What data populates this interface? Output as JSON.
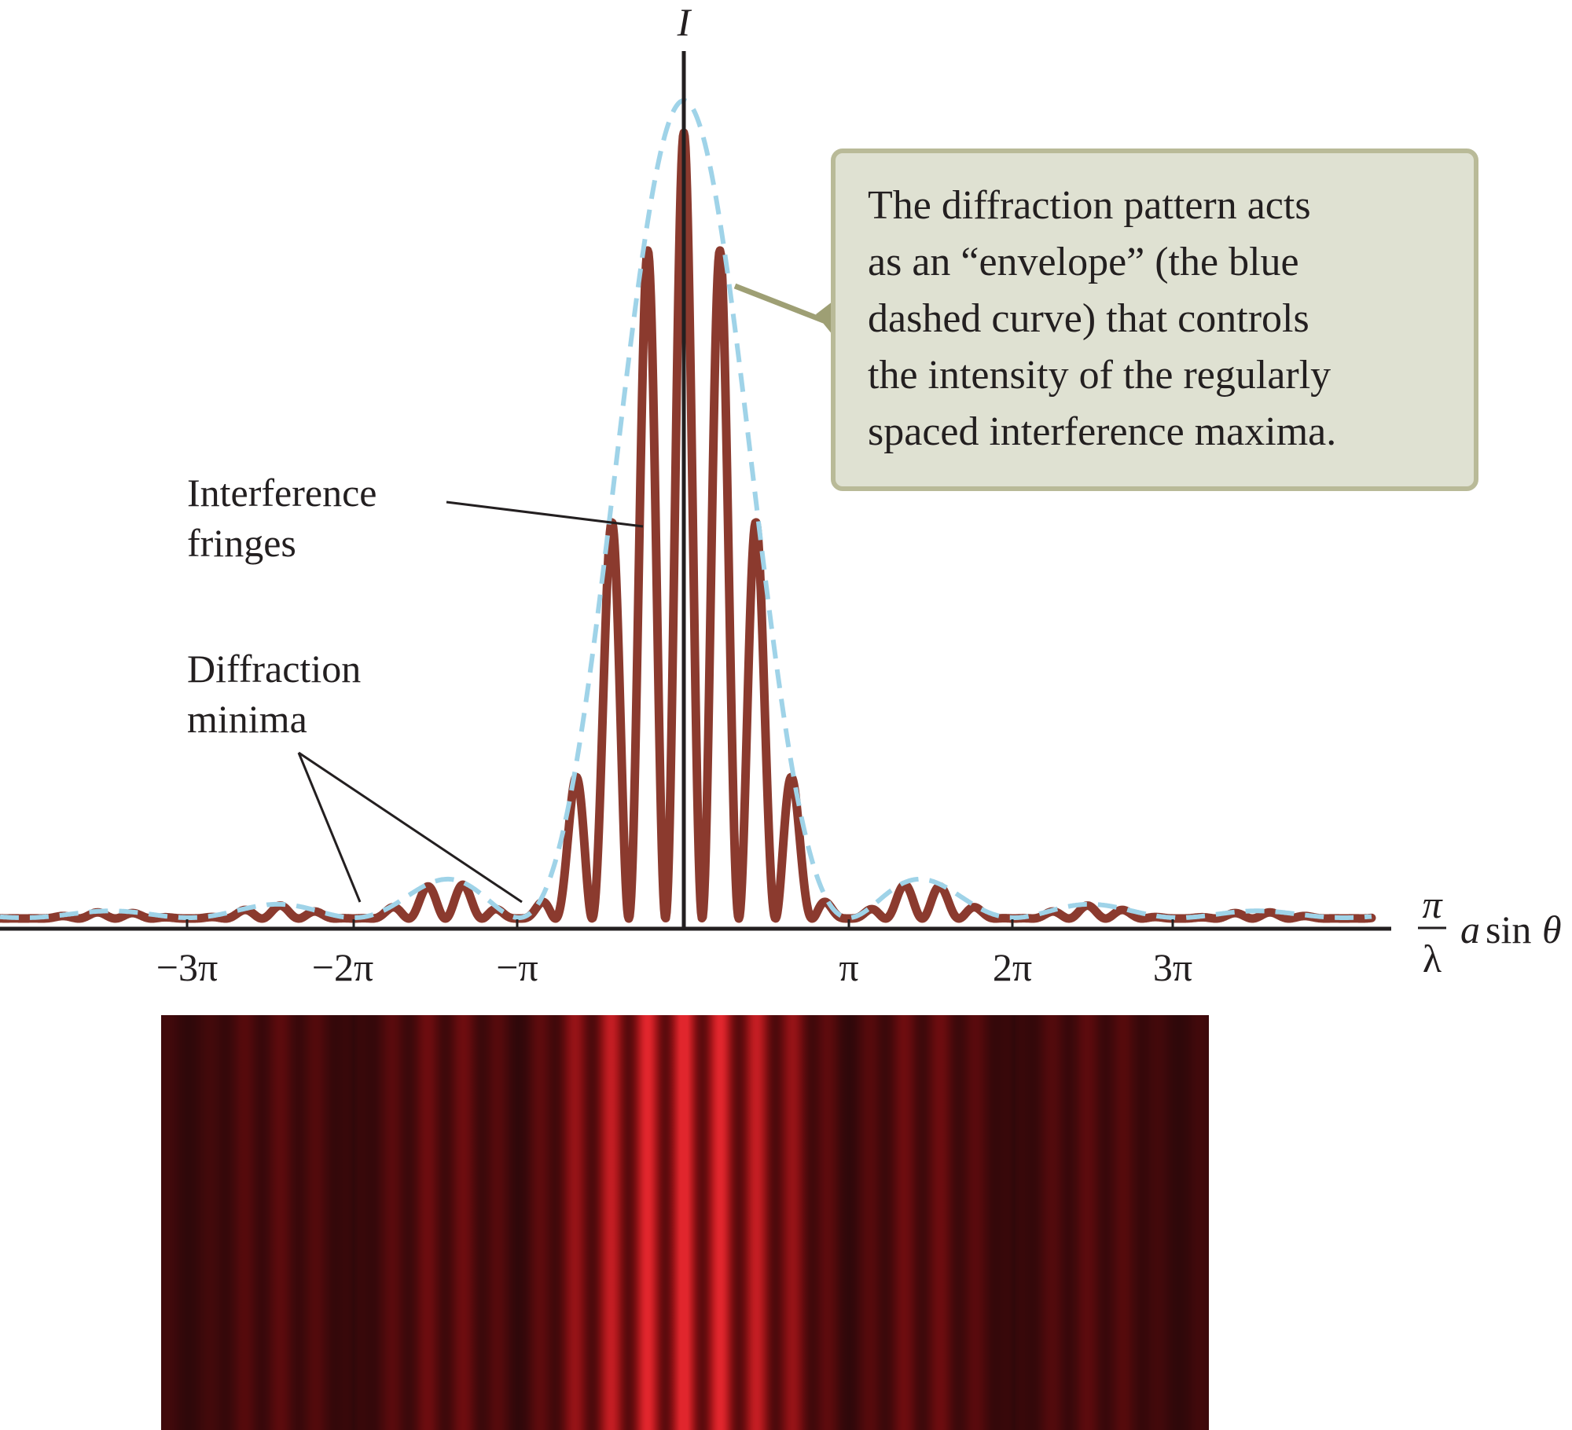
{
  "axes": {
    "y_label": "I",
    "x_label_frac_num": "π",
    "x_label_frac_den": "λ",
    "x_label_expr_a": "a",
    "x_label_expr_sin": "sin",
    "x_label_expr_theta": "θ",
    "x_ticks": [
      "−3π",
      "−2π",
      "−π",
      "π",
      "2π",
      "3π"
    ]
  },
  "labels": {
    "interference": [
      "Interference",
      "fringes"
    ],
    "diffraction": [
      "Diffraction",
      "minima"
    ]
  },
  "callout": {
    "lines": [
      "The diffraction pattern acts",
      "as an “envelope” (the blue",
      "dashed curve) that controls",
      "the intensity of the regularly",
      "spaced interference maxima."
    ]
  },
  "colors": {
    "fringe_curve": "#8b3a2e",
    "envelope": "#9fd3e8",
    "callout_fill": "#dfe1d2",
    "callout_border": "#b9ba98",
    "callout_pointer": "#9e9f74",
    "axis": "#231f20"
  },
  "chart_data": {
    "type": "line",
    "xlabel": "(π/λ) a sin θ",
    "ylabel": "I",
    "x_tick_values_in_pi": [
      -3,
      -2,
      -1,
      1,
      2,
      3
    ],
    "series": [
      {
        "name": "Interference fringes",
        "function": "sinc²(β)·cos²(δ)"
      },
      {
        "name": "Diffraction envelope",
        "function": "sinc²(β)",
        "style": "dashed"
      }
    ],
    "diffraction_minima_in_pi": [
      -3,
      -2,
      -1,
      1,
      2,
      3
    ],
    "fringes_per_pi": 4.5
  }
}
